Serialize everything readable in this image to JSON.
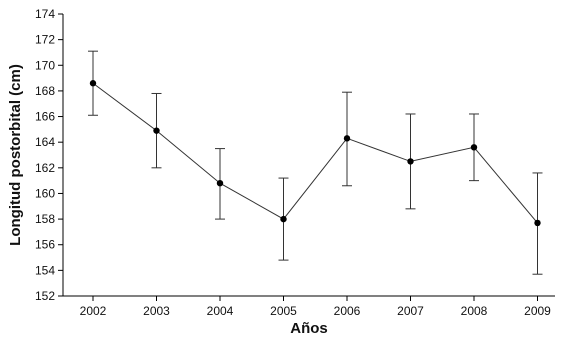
{
  "chart_data": {
    "type": "line",
    "title": "",
    "xlabel": "Años",
    "ylabel": "Longitud postorbital (cm)",
    "ylim": [
      152,
      174
    ],
    "yticks": [
      152,
      154,
      156,
      158,
      160,
      162,
      164,
      166,
      168,
      170,
      172,
      174
    ],
    "categories": [
      "2002",
      "2003",
      "2004",
      "2005",
      "2006",
      "2007",
      "2008",
      "2009"
    ],
    "series": [
      {
        "values": [
          168.6,
          164.9,
          160.8,
          158.0,
          164.3,
          162.5,
          163.6,
          157.7
        ],
        "error_low": [
          166.1,
          162.0,
          158.0,
          154.8,
          160.6,
          158.8,
          161.0,
          153.7
        ],
        "error_high": [
          171.1,
          167.8,
          163.5,
          161.2,
          167.9,
          166.2,
          166.2,
          161.6
        ]
      }
    ],
    "grid": false,
    "legend": "none",
    "colors": {
      "line": "#333333",
      "marker": "#000000",
      "axis": "#000000"
    }
  }
}
